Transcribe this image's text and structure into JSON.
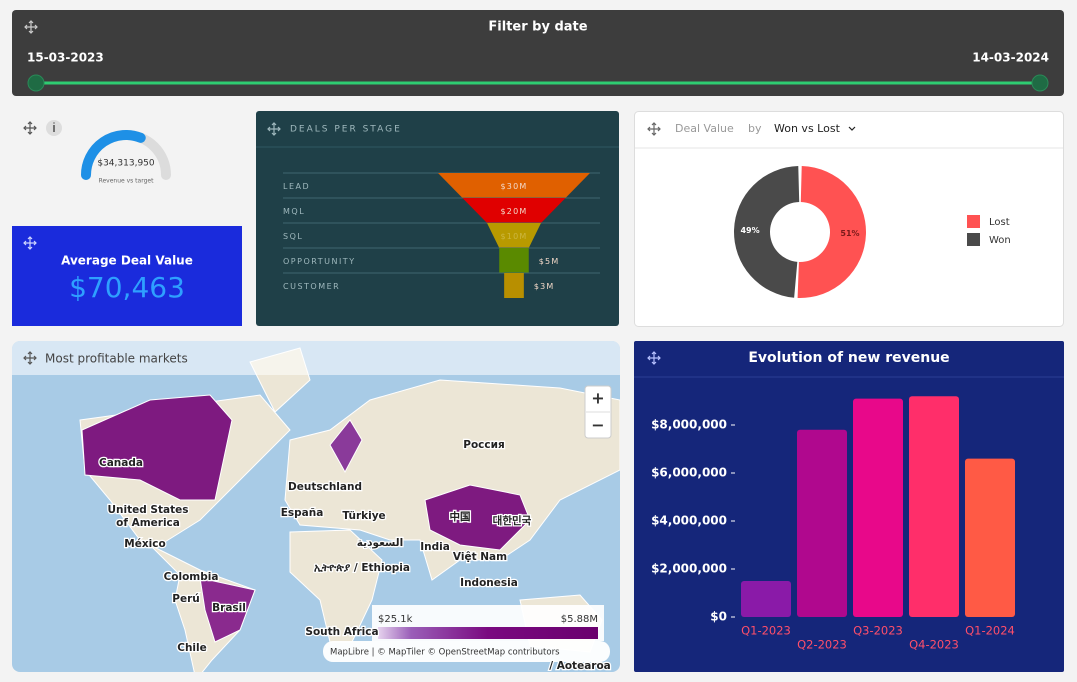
{
  "filter": {
    "title": "Filter by date",
    "start": "15-03-2023",
    "end": "14-03-2024"
  },
  "gauge": {
    "value_label": "$34,313,950",
    "caption": "Revenue vs target",
    "progress": 62
  },
  "kpi": {
    "title": "Average Deal Value",
    "value": "$70,463"
  },
  "map": {
    "title": "Most profitable markets",
    "labels": [
      "Canada",
      "United States",
      "of America",
      "México",
      "Colombia",
      "Perú",
      "Brasil",
      "Chile",
      "Deutschland",
      "España",
      "Türkiye",
      "السعودية",
      "India",
      "中国",
      "대한민국",
      "Việt Nam",
      "Indonesia",
      "Россия",
      "ኢትዮጵያ / Ethiopia",
      "South Africa",
      "/ Aotearoa"
    ],
    "legend": {
      "min": "$25.1k",
      "max": "$5.88M"
    },
    "zoom": [
      "+",
      "−"
    ],
    "attribution": "MapLibre | © MapTiler © OpenStreetMap contributors"
  },
  "chart_data": [
    {
      "type": "funnel",
      "title": "DEALS PER STAGE",
      "categories": [
        "LEAD",
        "MQL",
        "SQL",
        "OPPORTUNITY",
        "CUSTOMER"
      ],
      "values": [
        30,
        20,
        10,
        5,
        3
      ],
      "value_labels": [
        "$30M",
        "$20M",
        "$10M",
        "$5M",
        "$3M"
      ],
      "colors": [
        "#e06000",
        "#e00000",
        "#b89a00",
        "#5a8a00",
        "#b88f00"
      ]
    },
    {
      "type": "pie",
      "title": "Deal Value",
      "subtitle": "by",
      "selector": "Won vs Lost",
      "categories": [
        "Lost",
        "Won"
      ],
      "values": [
        51,
        49
      ],
      "value_labels": [
        "51%",
        "49%"
      ],
      "colors": [
        "#ff5252",
        "#4a4a4a"
      ],
      "legend": "right"
    },
    {
      "type": "bar",
      "title": "Evolution of new revenue",
      "categories": [
        "Q1-2023",
        "Q2-2023",
        "Q3-2023",
        "Q4-2023",
        "Q1-2024"
      ],
      "values": [
        1500000,
        7800000,
        9100000,
        9200000,
        6600000
      ],
      "colors": [
        "#8a1aa8",
        "#b0088e",
        "#e8088a",
        "#ff2e6a",
        "#ff5a45"
      ],
      "ylim": [
        0,
        9500000
      ],
      "yticks": [
        {
          "value": 0,
          "label": "$0"
        },
        {
          "value": 2000000,
          "label": "$2,000,000"
        },
        {
          "value": 4000000,
          "label": "$4,000,000"
        },
        {
          "value": 6000000,
          "label": "$6,000,000"
        },
        {
          "value": 8000000,
          "label": "$8,000,000"
        }
      ]
    }
  ]
}
